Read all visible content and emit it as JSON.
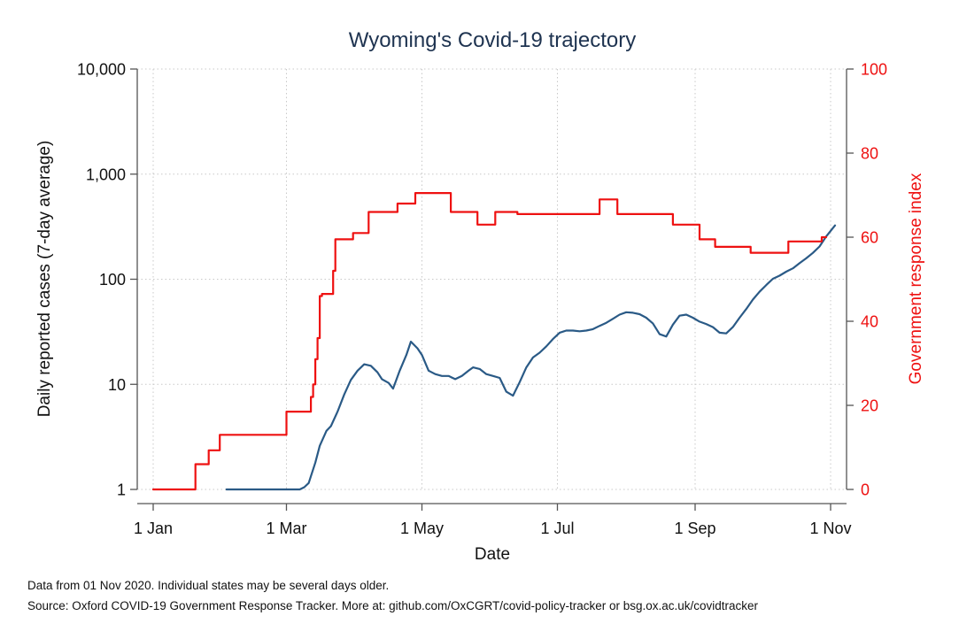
{
  "chart_data": {
    "type": "line",
    "title": "Wyoming's Covid-19 trajectory",
    "xlabel": "Date",
    "ylabel_left": "Daily reported cases (7-day average)",
    "ylabel_right": "Government response index",
    "x_ticks": [
      {
        "date": "2020-01-01",
        "label": "1 Jan"
      },
      {
        "date": "2020-03-01",
        "label": "1 Mar"
      },
      {
        "date": "2020-05-01",
        "label": "1 May"
      },
      {
        "date": "2020-07-01",
        "label": "1 Jul"
      },
      {
        "date": "2020-09-01",
        "label": "1 Sep"
      },
      {
        "date": "2020-11-01",
        "label": "1 Nov"
      }
    ],
    "y_left": {
      "scale": "log",
      "range": [
        1,
        10000
      ],
      "ticks": [
        {
          "value": 1,
          "label": "1"
        },
        {
          "value": 10,
          "label": "10"
        },
        {
          "value": 100,
          "label": "100"
        },
        {
          "value": 1000,
          "label": "1,000"
        },
        {
          "value": 10000,
          "label": "10,000"
        }
      ]
    },
    "y_right": {
      "scale": "linear",
      "range": [
        0,
        100
      ],
      "ticks": [
        {
          "value": 0,
          "label": "0"
        },
        {
          "value": 20,
          "label": "20"
        },
        {
          "value": 40,
          "label": "40"
        },
        {
          "value": 60,
          "label": "60"
        },
        {
          "value": 80,
          "label": "80"
        },
        {
          "value": 100,
          "label": "100"
        }
      ]
    },
    "grid": true,
    "series": [
      {
        "axis": "left",
        "color": "#2a5a86",
        "points": [
          [
            "2020-02-03",
            1
          ],
          [
            "2020-02-20",
            1
          ],
          [
            "2020-03-02",
            1
          ],
          [
            "2020-03-07",
            1
          ],
          [
            "2020-03-09",
            1.05
          ],
          [
            "2020-03-11",
            1.15
          ],
          [
            "2020-03-14",
            1.8
          ],
          [
            "2020-03-16",
            2.6
          ],
          [
            "2020-03-19",
            3.6
          ],
          [
            "2020-03-21",
            4
          ],
          [
            "2020-03-24",
            5.5
          ],
          [
            "2020-03-27",
            8
          ],
          [
            "2020-03-30",
            11
          ],
          [
            "2020-04-02",
            13.5
          ],
          [
            "2020-04-05",
            15.5
          ],
          [
            "2020-04-08",
            15
          ],
          [
            "2020-04-11",
            13
          ],
          [
            "2020-04-13",
            11.2
          ],
          [
            "2020-04-16",
            10.3
          ],
          [
            "2020-04-18",
            9.1
          ],
          [
            "2020-04-21",
            13.5
          ],
          [
            "2020-04-24",
            19
          ],
          [
            "2020-04-26",
            25.5
          ],
          [
            "2020-04-29",
            22
          ],
          [
            "2020-05-01",
            19
          ],
          [
            "2020-05-04",
            13.5
          ],
          [
            "2020-05-07",
            12.5
          ],
          [
            "2020-05-10",
            12
          ],
          [
            "2020-05-13",
            12
          ],
          [
            "2020-05-16",
            11.2
          ],
          [
            "2020-05-19",
            12
          ],
          [
            "2020-05-22",
            13.5
          ],
          [
            "2020-05-24",
            14.5
          ],
          [
            "2020-05-27",
            14
          ],
          [
            "2020-05-30",
            12.5
          ],
          [
            "2020-06-02",
            12
          ],
          [
            "2020-06-05",
            11.5
          ],
          [
            "2020-06-08",
            8.5
          ],
          [
            "2020-06-11",
            7.8
          ],
          [
            "2020-06-14",
            10.5
          ],
          [
            "2020-06-17",
            14.5
          ],
          [
            "2020-06-20",
            18
          ],
          [
            "2020-06-23",
            20
          ],
          [
            "2020-06-26",
            23
          ],
          [
            "2020-06-29",
            27
          ],
          [
            "2020-07-02",
            31
          ],
          [
            "2020-07-05",
            32.5
          ],
          [
            "2020-07-08",
            32.5
          ],
          [
            "2020-07-11",
            32
          ],
          [
            "2020-07-14",
            32.5
          ],
          [
            "2020-07-17",
            33.5
          ],
          [
            "2020-07-20",
            36
          ],
          [
            "2020-07-23",
            38.5
          ],
          [
            "2020-07-26",
            42
          ],
          [
            "2020-07-29",
            46
          ],
          [
            "2020-08-01",
            48.5
          ],
          [
            "2020-08-04",
            48
          ],
          [
            "2020-08-07",
            46.5
          ],
          [
            "2020-08-10",
            43
          ],
          [
            "2020-08-13",
            38
          ],
          [
            "2020-08-16",
            30
          ],
          [
            "2020-08-19",
            28.5
          ],
          [
            "2020-08-22",
            37
          ],
          [
            "2020-08-25",
            45
          ],
          [
            "2020-08-28",
            46
          ],
          [
            "2020-08-31",
            43
          ],
          [
            "2020-09-03",
            39.5
          ],
          [
            "2020-09-06",
            37.5
          ],
          [
            "2020-09-09",
            35
          ],
          [
            "2020-09-12",
            31
          ],
          [
            "2020-09-15",
            30.5
          ],
          [
            "2020-09-18",
            35
          ],
          [
            "2020-09-21",
            43
          ],
          [
            "2020-09-24",
            52
          ],
          [
            "2020-09-27",
            64
          ],
          [
            "2020-09-30",
            76
          ],
          [
            "2020-10-03",
            88
          ],
          [
            "2020-10-06",
            101
          ],
          [
            "2020-10-09",
            108
          ],
          [
            "2020-10-12",
            118
          ],
          [
            "2020-10-15",
            127
          ],
          [
            "2020-10-18",
            142
          ],
          [
            "2020-10-21",
            158
          ],
          [
            "2020-10-24",
            178
          ],
          [
            "2020-10-27",
            205
          ],
          [
            "2020-10-30",
            255
          ],
          [
            "2020-11-03",
            325
          ]
        ]
      },
      {
        "axis": "right",
        "color": "#ee1111",
        "step": true,
        "points": [
          [
            "2020-01-01",
            0
          ],
          [
            "2020-01-20",
            6
          ],
          [
            "2020-01-26",
            9.3
          ],
          [
            "2020-01-31",
            13
          ],
          [
            "2020-03-01",
            18.5
          ],
          [
            "2020-03-12",
            22
          ],
          [
            "2020-03-13",
            25
          ],
          [
            "2020-03-14",
            31
          ],
          [
            "2020-03-15",
            36
          ],
          [
            "2020-03-16",
            46
          ],
          [
            "2020-03-17",
            46.5
          ],
          [
            "2020-03-22",
            52
          ],
          [
            "2020-03-23",
            59.5
          ],
          [
            "2020-03-31",
            61
          ],
          [
            "2020-04-07",
            66
          ],
          [
            "2020-04-20",
            68
          ],
          [
            "2020-04-28",
            70.5
          ],
          [
            "2020-05-14",
            66
          ],
          [
            "2020-05-26",
            63
          ],
          [
            "2020-06-03",
            66
          ],
          [
            "2020-06-13",
            65.5
          ],
          [
            "2020-07-20",
            69
          ],
          [
            "2020-07-28",
            65.5
          ],
          [
            "2020-08-22",
            63
          ],
          [
            "2020-09-03",
            59.5
          ],
          [
            "2020-09-10",
            57.7
          ],
          [
            "2020-09-26",
            56.3
          ],
          [
            "2020-10-13",
            59
          ],
          [
            "2020-10-28",
            60
          ]
        ],
        "end_date": "2020-10-30"
      }
    ]
  },
  "footer": {
    "note1": "Data from 01 Nov 2020. Individual states may be several days older.",
    "note2": "Source: Oxford COVID-19 Government Response Tracker. More at: github.com/OxCGRT/covid-policy-tracker or bsg.ox.ac.uk/covidtracker"
  }
}
